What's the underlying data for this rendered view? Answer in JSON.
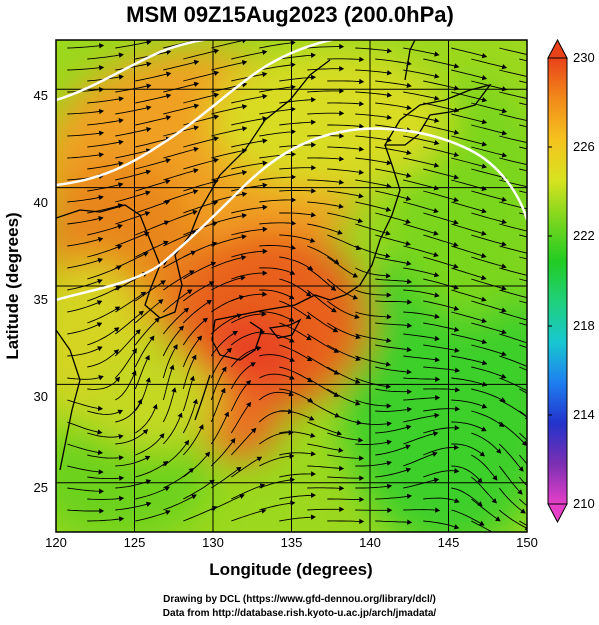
{
  "title": "MSM 09Z15Aug2023 (200.0hPa)",
  "xlabel": "Longitude (degrees)",
  "ylabel": "Latitude (degrees)",
  "x_ticks": [
    "120",
    "125",
    "130",
    "135",
    "140",
    "145",
    "150"
  ],
  "y_ticks": [
    "25",
    "30",
    "35",
    "40",
    "45"
  ],
  "colorbar": {
    "ticks": [
      "230",
      "226",
      "222",
      "218",
      "214",
      "210"
    ],
    "min": 210,
    "max": 230,
    "colors": [
      "#e640c8",
      "#7a2fb3",
      "#2233cc",
      "#1e7ff0",
      "#18c8d0",
      "#1fd07a",
      "#22cc22",
      "#7ad61e",
      "#d8e320",
      "#f5c21e",
      "#f28a1a",
      "#e8421a"
    ]
  },
  "map": {
    "lon_range": [
      120,
      150
    ],
    "lat_range": [
      22.5,
      47.5
    ]
  },
  "credits": {
    "line1": "Drawing by DCL (https://www.gfd-dennou.org/library/dcl/)",
    "line2": "Data from http://database.rish.kyoto-u.ac.jp/arch/jmadata/"
  }
}
